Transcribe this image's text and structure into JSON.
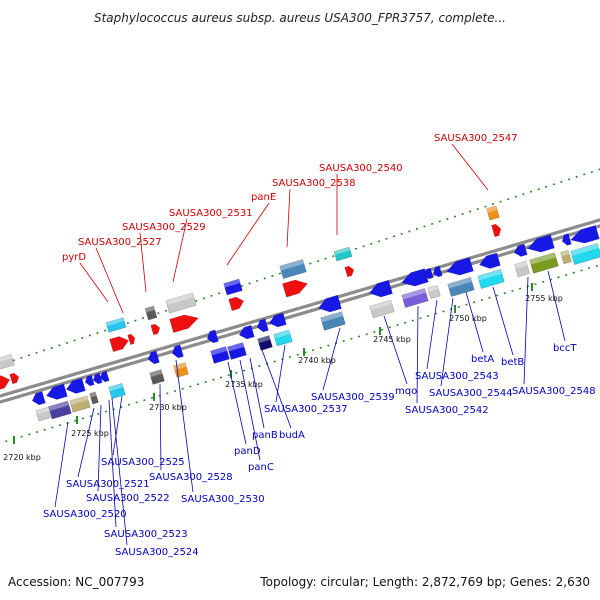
{
  "title": "Staphylococcus aureus subsp. aureus USA300_FPR3757, complete...",
  "footer": {
    "accession": "Accession: NC_007793",
    "topology": "Topology: circular; Length: 2,872,769 bp; Genes: 2,630"
  },
  "colors": {
    "backbone": "#8c8c8c",
    "forward_label": "#cc0000",
    "reverse_label": "#0000bb",
    "dotted_track": "#2a8a2a"
  },
  "ruler": [
    {
      "label": "2720 kbp"
    },
    {
      "label": "2725 kbp"
    },
    {
      "label": "2730 kbp"
    },
    {
      "label": "2735 kbp"
    },
    {
      "label": "2740 kbp"
    },
    {
      "label": "2745 kbp"
    },
    {
      "label": "2750 kbp"
    },
    {
      "label": "2755 kbp"
    }
  ],
  "top_labels": [
    {
      "name": "pyrD"
    },
    {
      "name": "SAUSA300_2527"
    },
    {
      "name": "SAUSA300_2529"
    },
    {
      "name": "SAUSA300_2531"
    },
    {
      "name": "panE"
    },
    {
      "name": "SAUSA300_2538"
    },
    {
      "name": "SAUSA300_2540"
    },
    {
      "name": "SAUSA300_2547"
    }
  ],
  "bottom_labels": [
    {
      "name": "SAUSA300_2520"
    },
    {
      "name": "SAUSA300_2521"
    },
    {
      "name": "SAUSA300_2522"
    },
    {
      "name": "SAUSA300_2523"
    },
    {
      "name": "SAUSA300_2524"
    },
    {
      "name": "SAUSA300_2525"
    },
    {
      "name": "SAUSA300_2528"
    },
    {
      "name": "SAUSA300_2530"
    },
    {
      "name": "panD"
    },
    {
      "name": "panC"
    },
    {
      "name": "panB"
    },
    {
      "name": "budA"
    },
    {
      "name": "SAUSA300_2537"
    },
    {
      "name": "SAUSA300_2539"
    },
    {
      "name": "mqo"
    },
    {
      "name": "SAUSA300_2542"
    },
    {
      "name": "SAUSA300_2543"
    },
    {
      "name": "SAUSA300_2544"
    },
    {
      "name": "betA"
    },
    {
      "name": "betB"
    },
    {
      "name": "SAUSA300_2548"
    },
    {
      "name": "bccT"
    }
  ]
}
